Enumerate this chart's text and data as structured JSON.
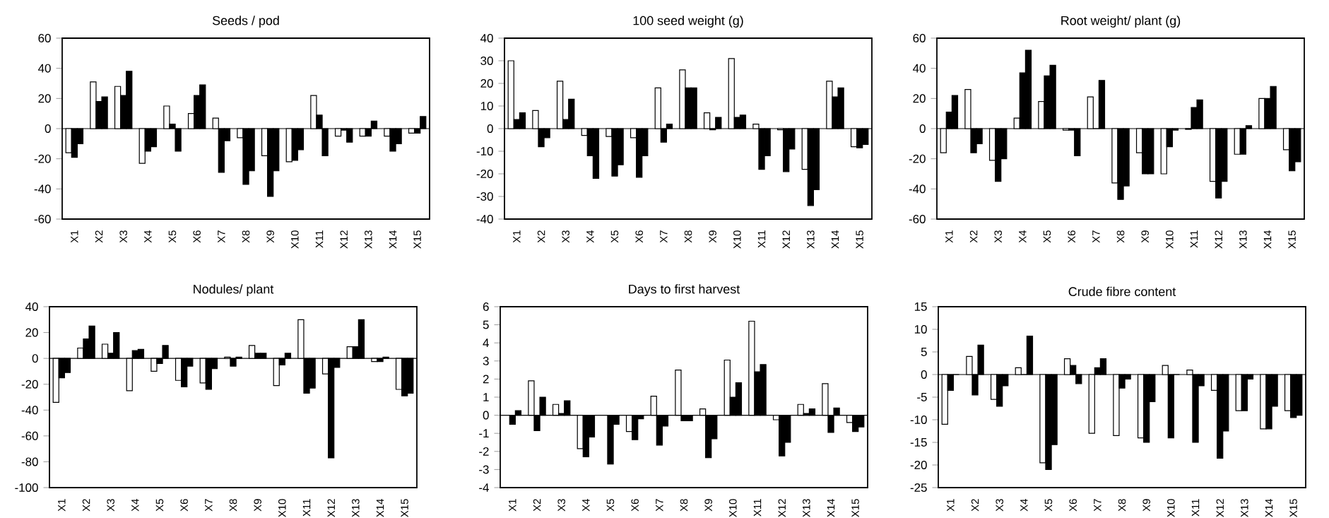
{
  "chart_data": [
    {
      "type": "bar",
      "title": "Seeds / pod",
      "categories": [
        "X1",
        "X2",
        "X3",
        "X4",
        "X5",
        "X6",
        "X7",
        "X8",
        "X9",
        "X10",
        "X11",
        "X12",
        "X13",
        "X14",
        "X15"
      ],
      "ylim": [
        -60,
        60
      ],
      "yticks": [
        -60,
        -40,
        -20,
        0,
        20,
        40,
        60
      ],
      "series": [
        {
          "color": "#ffffff",
          "values": [
            -16,
            31,
            28,
            -23,
            15,
            10,
            7,
            -6,
            -18,
            -22,
            22,
            -5,
            -5,
            -5,
            -3
          ]
        },
        {
          "color": "#000000",
          "values": [
            -19,
            18,
            22,
            -15,
            3,
            22,
            -29,
            -37,
            -45,
            -21,
            9,
            -1,
            -5,
            -15,
            -3
          ]
        },
        {
          "color": "#000000",
          "values": [
            -10,
            21,
            38,
            -12,
            -15,
            29,
            -8,
            -28,
            -28,
            -14,
            -18,
            -9,
            5,
            -10,
            8
          ]
        }
      ]
    },
    {
      "type": "bar",
      "title": "100 seed weight (g)",
      "categories": [
        "X1",
        "X2",
        "X3",
        "X4",
        "X5",
        "X6",
        "X7",
        "X8",
        "X9",
        "X10",
        "X11",
        "X12",
        "X13",
        "X14",
        "X15"
      ],
      "ylim": [
        -40,
        40
      ],
      "yticks": [
        -40,
        -30,
        -20,
        -10,
        0,
        10,
        20,
        30,
        40
      ],
      "series": [
        {
          "color": "#ffffff",
          "values": [
            30,
            8,
            21,
            -3,
            -3.5,
            -4,
            18,
            26,
            7,
            31,
            2,
            -0.5,
            -18,
            21,
            -8
          ]
        },
        {
          "color": "#000000",
          "values": [
            4,
            -8,
            4,
            -12,
            -21,
            -21.5,
            -6,
            18,
            -0.5,
            5,
            -18,
            -19,
            -34,
            14,
            -8.5
          ]
        },
        {
          "color": "#000000",
          "values": [
            7,
            -4,
            13,
            -22,
            -16,
            -12,
            2,
            18,
            5,
            6,
            -12,
            -9,
            -27,
            18,
            -7
          ]
        }
      ]
    },
    {
      "type": "bar",
      "title": "Root weight/ plant (g)",
      "categories": [
        "X1",
        "X2",
        "X3",
        "X4",
        "X5",
        "X6",
        "X7",
        "X8",
        "X9",
        "X10",
        "X11",
        "X12",
        "X13",
        "X14",
        "X15"
      ],
      "ylim": [
        -60,
        60
      ],
      "yticks": [
        -60,
        -40,
        -20,
        0,
        20,
        40,
        60
      ],
      "series": [
        {
          "color": "#ffffff",
          "values": [
            -16,
            26,
            -21,
            7,
            18,
            -1,
            21,
            -36,
            -16,
            -30,
            -0.5,
            -35,
            -17,
            20,
            -14
          ]
        },
        {
          "color": "#000000",
          "values": [
            11,
            -16,
            -35,
            37,
            35,
            -1,
            0,
            -47,
            -30,
            -12,
            14,
            -46,
            -17,
            20,
            -28
          ]
        },
        {
          "color": "#000000",
          "values": [
            22,
            -10,
            -20,
            52,
            42,
            -18,
            32,
            -38,
            -30,
            -1,
            19,
            -35,
            2,
            28,
            -22
          ]
        }
      ]
    },
    {
      "type": "bar",
      "title": "Nodules/ plant",
      "categories": [
        "X1",
        "X2",
        "X3",
        "X4",
        "X5",
        "X6",
        "X7",
        "X8",
        "X9",
        "X10",
        "X11",
        "X12",
        "X13",
        "X14",
        "X15"
      ],
      "ylim": [
        -100,
        40
      ],
      "yticks": [
        -100,
        -80,
        -60,
        -40,
        -20,
        0,
        20,
        40
      ],
      "series": [
        {
          "color": "#ffffff",
          "values": [
            -34,
            8,
            11,
            -25,
            -10,
            -17,
            -19,
            1,
            10,
            -21,
            30,
            -12,
            9,
            -2.5,
            -24
          ]
        },
        {
          "color": "#000000",
          "values": [
            -15,
            15,
            4,
            6,
            -4,
            -22,
            -24,
            -6,
            4,
            -5,
            -27,
            -77,
            9,
            -2.5,
            -29
          ]
        },
        {
          "color": "#000000",
          "values": [
            -11,
            25,
            20,
            7,
            10,
            -6,
            -8,
            1,
            4,
            4,
            -23,
            -7,
            30,
            1,
            -27
          ]
        }
      ]
    },
    {
      "type": "bar",
      "title": "Days to first harvest",
      "categories": [
        "X1",
        "X2",
        "X3",
        "X4",
        "X5",
        "X6",
        "X7",
        "X8",
        "X9",
        "X10",
        "X11",
        "X12",
        "X13",
        "X14",
        "X15"
      ],
      "ylim": [
        -4,
        6
      ],
      "yticks": [
        -4,
        -3,
        -2,
        -1,
        0,
        1,
        2,
        3,
        4,
        5,
        6
      ],
      "series": [
        {
          "color": "#ffffff",
          "values": [
            null,
            1.9,
            0.6,
            -1.85,
            null,
            -0.9,
            1.05,
            2.5,
            0.35,
            3.05,
            5.2,
            -0.25,
            0.6,
            1.75,
            -0.4
          ]
        },
        {
          "color": "#000000",
          "values": [
            -0.5,
            -0.85,
            0.1,
            -2.3,
            -2.7,
            -1.35,
            -1.65,
            -0.3,
            -2.35,
            1,
            2.4,
            -2.25,
            0.1,
            -0.95,
            -0.9
          ]
        },
        {
          "color": "#000000",
          "values": [
            0.25,
            1,
            0.8,
            -1.2,
            -0.5,
            -0.2,
            -0.6,
            -0.3,
            -1.3,
            1.8,
            2.8,
            -1.5,
            0.35,
            0.4,
            -0.65
          ]
        }
      ]
    },
    {
      "type": "bar",
      "title": "Crude fibre content",
      "categories": [
        "X1",
        "X2",
        "X3",
        "X4",
        "X5",
        "X6",
        "X7",
        "X8",
        "X9",
        "X10",
        "X11",
        "X12",
        "X13",
        "X14",
        "X15"
      ],
      "ylim": [
        -25,
        15
      ],
      "yticks": [
        -25,
        -20,
        -15,
        -10,
        -5,
        0,
        5,
        10,
        15
      ],
      "series": [
        {
          "color": "#ffffff",
          "values": [
            -11,
            4,
            -5.5,
            1.5,
            -19.5,
            3.5,
            -13,
            -13.5,
            -14,
            2,
            1,
            -3.5,
            -8,
            -12,
            -8
          ]
        },
        {
          "color": "#000000",
          "values": [
            -3.5,
            -4.5,
            -7,
            0,
            -21,
            2,
            1.5,
            -3,
            -15,
            -14,
            -15,
            -18.5,
            -8,
            -12,
            -9.5
          ]
        },
        {
          "color": "#000000",
          "values": [
            0,
            6.5,
            -2.5,
            8.5,
            -15.5,
            -2,
            3.5,
            -1,
            -6,
            0,
            -2.5,
            -12.5,
            -1,
            -7,
            -9
          ]
        }
      ]
    }
  ]
}
